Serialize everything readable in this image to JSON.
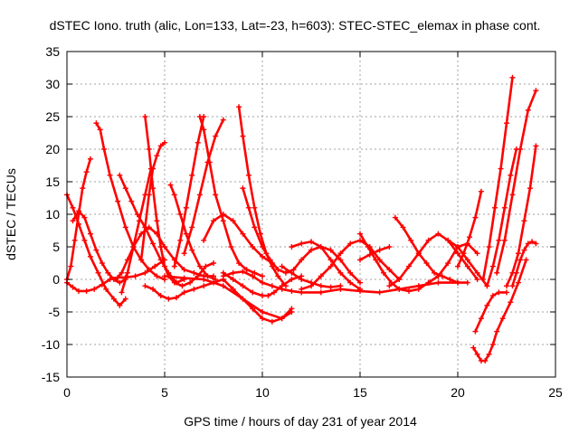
{
  "chart_data": {
    "type": "scatter",
    "title": "dSTEC Iono. truth (alic, Lon=133, Lat=-23, h=603): STEC-STEC_elemax in phase cont.",
    "xlabel": "GPS time / hours of day 231 of year 2014",
    "ylabel": "dSTEC  / TECUs",
    "xlim": [
      0,
      25
    ],
    "ylim": [
      -15,
      35
    ],
    "xticks": [
      0,
      5,
      10,
      15,
      20,
      25
    ],
    "yticks": [
      -15,
      -10,
      -5,
      0,
      5,
      10,
      15,
      20,
      25,
      30,
      35
    ],
    "grid": true,
    "marker": "plus",
    "color": "#ff0000",
    "series": [
      {
        "x": [
          0.0,
          0.3,
          0.6,
          0.9,
          1.2,
          1.6,
          2.0,
          2.4,
          2.7,
          3.0
        ],
        "y": [
          13,
          11,
          8.5,
          6,
          3.5,
          1,
          -1.5,
          -3,
          -4,
          -3
        ]
      },
      {
        "x": [
          0.0,
          0.2,
          0.4,
          0.6,
          0.8,
          1.0,
          1.2
        ],
        "y": [
          0,
          2,
          6,
          10,
          14,
          16.5,
          18.5
        ]
      },
      {
        "x": [
          0.0,
          0.3,
          0.6,
          1.0,
          1.4,
          1.8,
          2.2,
          2.6,
          3.0,
          3.5,
          4.0,
          4.5,
          5.0
        ],
        "y": [
          -0.5,
          -1.2,
          -1.8,
          -1.8,
          -1.5,
          -0.8,
          0,
          0.3,
          0.3,
          0.5,
          1,
          2,
          3
        ]
      },
      {
        "x": [
          0.3,
          0.6,
          0.9,
          1.2,
          1.5,
          1.8,
          2.1,
          2.4,
          2.7,
          3.0
        ],
        "y": [
          9,
          10.5,
          9.5,
          7,
          4.5,
          2.5,
          1,
          0,
          -0.5,
          0
        ]
      },
      {
        "x": [
          1.5,
          1.7,
          1.9,
          2.2,
          2.6,
          3.0,
          3.4,
          3.8,
          4.2,
          4.6,
          5.0
        ],
        "y": [
          24,
          23,
          20,
          16,
          12,
          8,
          5,
          3,
          1.5,
          0.5,
          0
        ]
      },
      {
        "x": [
          2.5,
          2.8,
          3.1,
          3.4,
          3.8,
          4.2,
          4.6,
          5.0,
          5.5,
          6.0,
          6.5,
          7.0,
          7.5
        ],
        "y": [
          0,
          1,
          3,
          5,
          7,
          8,
          7,
          5,
          3,
          1.5,
          1,
          0.5,
          0.5
        ]
      },
      {
        "x": [
          2.7,
          3.0,
          3.3,
          3.6,
          4.0,
          4.4,
          4.8,
          5.2,
          5.6,
          6.0
        ],
        "y": [
          16,
          14,
          12,
          10,
          8,
          5.5,
          3,
          1,
          -0.5,
          0
        ]
      },
      {
        "x": [
          2.8,
          3.1,
          3.4,
          3.7,
          4.0,
          4.3
        ],
        "y": [
          -2,
          1,
          5,
          9,
          13,
          17
        ]
      },
      {
        "x": [
          4.0,
          4.2,
          4.4,
          4.6,
          4.8,
          5.0,
          5.2,
          5.5,
          5.9,
          6.3,
          6.7,
          7.1,
          7.5
        ],
        "y": [
          25,
          20,
          14,
          9,
          5,
          2,
          0.5,
          -0.5,
          -1,
          -0.5,
          0.5,
          2,
          2.5
        ]
      },
      {
        "x": [
          3.8,
          4.0,
          4.2,
          4.4,
          4.6,
          4.8,
          5.0
        ],
        "y": [
          3,
          8,
          13,
          17,
          19,
          20.5,
          21
        ]
      },
      {
        "x": [
          4.0,
          4.4,
          4.8,
          5.2,
          5.6,
          6.0,
          6.5,
          7.0,
          7.5,
          8.0
        ],
        "y": [
          -1,
          -1.5,
          -2.5,
          -3,
          -2.8,
          -2,
          -1.5,
          -1,
          -0.5,
          0
        ]
      },
      {
        "x": [
          5.3,
          5.5,
          5.8,
          6.1,
          6.4,
          6.8,
          7.2,
          7.6
        ],
        "y": [
          14.5,
          13,
          10,
          7,
          4.5,
          2,
          0.5,
          0
        ]
      },
      {
        "x": [
          5.5,
          5.8,
          6.1,
          6.4,
          6.7,
          7.0
        ],
        "y": [
          2,
          6,
          11,
          16,
          21,
          25
        ]
      },
      {
        "x": [
          6.8,
          7.0,
          7.3,
          7.6,
          8.0,
          8.4,
          8.8,
          9.2,
          9.6,
          10.0
        ],
        "y": [
          25,
          23,
          18,
          13,
          9,
          5,
          2.5,
          1.5,
          1,
          0.5
        ]
      },
      {
        "x": [
          6.0,
          6.4,
          6.8,
          7.2,
          7.6,
          8.0
        ],
        "y": [
          4,
          8,
          13,
          18,
          22,
          24.5
        ]
      },
      {
        "x": [
          7.0,
          7.5,
          8.0,
          8.5,
          9.0,
          9.5,
          10.0,
          10.5
        ],
        "y": [
          6,
          9,
          10,
          9,
          7,
          5,
          3.5,
          2.5
        ]
      },
      {
        "x": [
          8.0,
          8.5,
          9.0,
          9.5,
          10.0,
          10.3,
          10.6,
          11.0,
          11.5,
          12.0
        ],
        "y": [
          1,
          0,
          -1,
          -2,
          -2.5,
          -2.5,
          -2,
          -1,
          0,
          0.5
        ]
      },
      {
        "x": [
          5.0,
          6.0,
          7.0,
          8.0,
          9.0,
          10.0,
          11.0,
          11.5
        ],
        "y": [
          0.5,
          0.2,
          0,
          -1,
          -3,
          -5,
          -6,
          -5
        ]
      },
      {
        "x": [
          8.0,
          8.5,
          9.0,
          9.5,
          10.0,
          10.5,
          11.0,
          11.5
        ],
        "y": [
          0,
          -1.5,
          -3,
          -4.5,
          -6,
          -6.5,
          -6,
          -4.5
        ]
      },
      {
        "x": [
          8.8,
          9.0,
          9.3,
          9.6,
          9.9,
          10.2,
          10.5,
          10.8,
          11.2
        ],
        "y": [
          26.5,
          22,
          16,
          11,
          7,
          4,
          2,
          0.5,
          -1
        ]
      },
      {
        "x": [
          8.0,
          8.5,
          9.0,
          9.5,
          10.0,
          10.5,
          11.0,
          11.5,
          12.0,
          13.0,
          14.0,
          15.0,
          16.0,
          17.0,
          18.0,
          19.0,
          20.0,
          20.5
        ],
        "y": [
          0.5,
          1,
          1.2,
          0.5,
          -0.5,
          -1,
          -1.5,
          -1.8,
          -2,
          -2,
          -1.5,
          -1.8,
          -2,
          -1.5,
          -1,
          -0.5,
          -0.5,
          -0.5
        ]
      },
      {
        "x": [
          9.0,
          9.3,
          9.6,
          10.0,
          10.4,
          10.8,
          11.2,
          11.6,
          12.0,
          12.5,
          13.0,
          13.5,
          14.0,
          14.5,
          15.0
        ],
        "y": [
          14,
          11,
          8,
          5,
          3,
          1.5,
          1,
          1.5,
          3,
          4.5,
          5,
          4.5,
          3,
          1,
          -0.5
        ]
      },
      {
        "x": [
          11.5,
          12.0,
          12.5,
          13.0,
          13.5,
          14.0,
          14.5,
          15.0
        ],
        "y": [
          5,
          5.5,
          5.8,
          5,
          3,
          1,
          -0.5,
          -1.5
        ]
      },
      {
        "x": [
          12.0,
          12.5,
          13.0,
          13.5,
          14.0,
          14.5,
          15.0,
          15.5,
          16.0,
          16.5,
          17.0
        ],
        "y": [
          -1.5,
          -1,
          0.5,
          2,
          4,
          5.5,
          6,
          5,
          3,
          1.5,
          0
        ]
      },
      {
        "x": [
          11.0,
          11.5,
          12.0,
          12.5,
          13.0,
          13.5,
          14.0
        ],
        "y": [
          2,
          1,
          0,
          -0.5,
          -1,
          -1.2,
          -1
        ]
      },
      {
        "x": [
          15.0,
          15.4,
          15.8,
          16.2,
          16.6,
          17.0,
          17.5,
          18.0,
          18.5,
          19.0
        ],
        "y": [
          7,
          5,
          3,
          1,
          -0.5,
          -1.5,
          -1.8,
          -1.5,
          -0.5,
          0.5
        ]
      },
      {
        "x": [
          15.0,
          15.5,
          16.0,
          16.5
        ],
        "y": [
          3,
          3.8,
          4.5,
          5
        ]
      },
      {
        "x": [
          16.5,
          17.0,
          17.5,
          18.0,
          18.5,
          19.0,
          19.5,
          20.0,
          20.5,
          21.0
        ],
        "y": [
          -1,
          0,
          2,
          4,
          6,
          7,
          6,
          4,
          2,
          0
        ]
      },
      {
        "x": [
          16.8,
          17.2,
          17.6,
          18.0,
          18.4,
          18.8,
          19.2,
          19.6,
          20.0
        ],
        "y": [
          9.5,
          8,
          6,
          4,
          2.5,
          1,
          0.5,
          0,
          -0.5
        ]
      },
      {
        "x": [
          18.5,
          19.0,
          19.5,
          20.0,
          20.5,
          21.0
        ],
        "y": [
          -0.5,
          0.5,
          2.5,
          5,
          5.5,
          4
        ]
      },
      {
        "x": [
          19.5,
          20.0,
          20.5,
          21.0,
          21.5
        ],
        "y": [
          6,
          5,
          3,
          1,
          -1
        ]
      },
      {
        "x": [
          20.0,
          20.3,
          20.6,
          20.9,
          21.2
        ],
        "y": [
          2,
          4,
          6.5,
          9.5,
          13.5
        ]
      },
      {
        "x": [
          20.8,
          21.0,
          21.2,
          21.4,
          21.6,
          21.8,
          22.0,
          22.3,
          22.7,
          23.1,
          23.5
        ],
        "y": [
          -10.5,
          -11.5,
          -12.5,
          -12.5,
          -11.5,
          -10,
          -8,
          -6,
          -3.5,
          -0.5,
          3
        ]
      },
      {
        "x": [
          20.9,
          21.2,
          21.5,
          21.8,
          22.1,
          22.5
        ],
        "y": [
          -8,
          -6,
          -4,
          -2.5,
          -2,
          -2
        ]
      },
      {
        "x": [
          21.3,
          21.6,
          21.9,
          22.2,
          22.5,
          22.8
        ],
        "y": [
          0,
          5,
          11,
          17,
          24,
          31
        ]
      },
      {
        "x": [
          21.5,
          21.8,
          22.1,
          22.4,
          22.7,
          23.0
        ],
        "y": [
          -1,
          2,
          6,
          11,
          16,
          20
        ]
      },
      {
        "x": [
          22.0,
          22.4,
          22.8,
          23.2,
          23.6,
          24.0
        ],
        "y": [
          1,
          6,
          13,
          20,
          26,
          29
        ]
      },
      {
        "x": [
          22.5,
          22.8,
          23.1,
          23.4,
          23.7,
          24.0
        ],
        "y": [
          -1,
          1,
          4,
          9,
          14,
          20.5
        ]
      },
      {
        "x": [
          22.8,
          23.0,
          23.2,
          23.4,
          23.6,
          23.8,
          24.0
        ],
        "y": [
          -1,
          1,
          3,
          4.5,
          5.5,
          5.8,
          5.5
        ]
      }
    ]
  }
}
